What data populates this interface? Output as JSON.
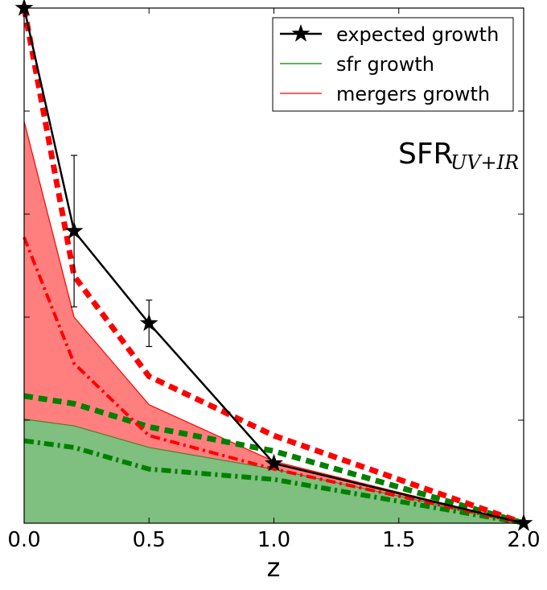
{
  "chart_data": {
    "type": "area",
    "xlabel": "z",
    "ylabel": "",
    "xlim": [
      0.0,
      2.0
    ],
    "ylim": [
      0,
      1.0
    ],
    "x_ticks": [
      "0.0",
      "0.5",
      "1.0",
      "1.5",
      "2.0"
    ],
    "x_tick_values": [
      0.0,
      0.5,
      1.0,
      1.5,
      2.0
    ],
    "y_tick_values": [
      0.2,
      0.4,
      0.6,
      0.8
    ],
    "y_ticks_labeled": false,
    "annotation": {
      "main": "SFR",
      "sub": "UV+IR"
    },
    "legend": [
      {
        "label": "expected growth",
        "style": "black line with star markers"
      },
      {
        "label": "sfr growth",
        "style": "green line"
      },
      {
        "label": "mergers growth",
        "style": "red line"
      }
    ],
    "x": [
      0.0,
      0.2,
      0.5,
      1.0,
      2.0
    ],
    "series": [
      {
        "name": "expected growth",
        "color": "#000000",
        "values": [
          1.0,
          0.567,
          0.388,
          0.116,
          0.0
        ],
        "errors": [
          null,
          0.147,
          0.045,
          0.0,
          null
        ]
      },
      {
        "name": "sfr growth (filled, green)",
        "color": "#7fbf7f",
        "values": [
          0.202,
          0.189,
          0.147,
          0.105,
          0.0
        ]
      },
      {
        "name": "sfr + mergers growth (filled, red)",
        "color": "#ff7f7f",
        "values": [
          0.78,
          0.4,
          0.23,
          0.12,
          0.0
        ]
      },
      {
        "name": "mergers upper (red dashed)",
        "color": "#ff0000",
        "values": [
          1.0,
          0.48,
          0.285,
          0.17,
          0.0
        ]
      },
      {
        "name": "mergers lower (red dash-dot)",
        "color": "#ff0000",
        "values": [
          0.555,
          0.31,
          0.17,
          0.105,
          0.0
        ]
      },
      {
        "name": "sfr upper (green dashed)",
        "color": "#008000",
        "values": [
          0.247,
          0.232,
          0.187,
          0.14,
          0.0
        ]
      },
      {
        "name": "sfr lower (green dash-dot)",
        "color": "#008000",
        "values": [
          0.16,
          0.147,
          0.105,
          0.085,
          0.0
        ]
      }
    ]
  }
}
